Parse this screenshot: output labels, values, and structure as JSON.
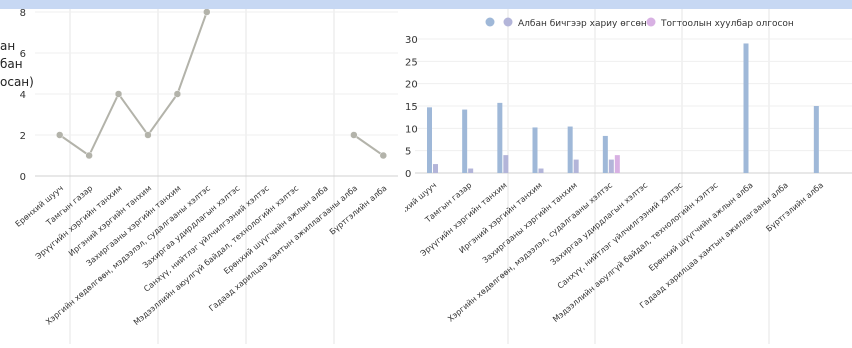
{
  "left_panel": {
    "legend_fragments": [
      "ан",
      "бан",
      "осан)"
    ]
  },
  "chart_data": [
    {
      "type": "line",
      "title": "",
      "xlabel": "",
      "ylabel": "",
      "ylim": [
        0,
        8
      ],
      "yticks": [
        "0",
        "2",
        "4",
        "6",
        "8"
      ],
      "grid": true,
      "categories": [
        "Ерөнхий шууч",
        "Тамгын газар",
        "Эрүүгийн хэргийн танхим",
        "Иргэний хэргийн танхим",
        "Захиргааны хэргийн танхим",
        "Хэргийн хөдөлгөөн, мэдээлэл, судалгааны хэлтэс",
        "Захиргаа удирдлагын хэлтэс",
        "Санхүү, нийтлэг үйлчилгээний хэлтэс",
        "Мэдээллийн аюулгүй байдал, технологийн хэлтэс",
        "Ерөнхий шүүгчийн ажлын алба",
        "Гадаад харилцаа хамтын ажиллагааны алба",
        "Бүртгэлийн алба"
      ],
      "series": [
        {
          "values": [
            2,
            1,
            4,
            2,
            4,
            8,
            null,
            null,
            null,
            null,
            2,
            1
          ],
          "color": "#b3b3aa"
        }
      ]
    },
    {
      "type": "bar",
      "title": "",
      "xlabel": "",
      "ylabel": "",
      "ylim": [
        0,
        30
      ],
      "yticks": [
        "0",
        "5",
        "10",
        "15",
        "20",
        "25",
        "30"
      ],
      "grid": true,
      "legend_position": "top",
      "categories": [
        "Ерөнхий шууч",
        "Тамгын газар",
        "Эрүүгийн хэргийн танхим",
        "Иргэний хэргийн танхим",
        "Захиргааны хэргийн танхим",
        "Хэргийн хөдөлгөөн, мэдээлэл, судалгааны хэлтэс",
        "Захиргаа удирдлагын хэлтэс",
        "Санхүү, нийтлэг үйлчилгээний хэлтэс",
        "Мэдээллийн аюулгүй байдал, технологийн хэлтэс",
        "Ерөнхий шүүгчийн ажлын алба",
        "Гадаад харилцаа хамтын ажиллагааны алба",
        "Бүртгэлийн алба"
      ],
      "series": [
        {
          "name": "",
          "color": "#9fb8d8",
          "values": [
            14.7,
            14.2,
            15.7,
            10.2,
            10.4,
            8.3,
            0,
            0,
            0,
            29,
            0,
            15
          ]
        },
        {
          "name": "Албан бичгээр хариу өгсөн",
          "color": "#b3b5d9",
          "values": [
            2,
            1,
            4,
            1,
            3,
            3,
            0,
            0,
            0,
            0,
            0,
            0
          ]
        },
        {
          "name": "Тогтоолын хуулбар олгосон",
          "color": "#d8b1e3",
          "values": [
            0,
            0,
            0,
            0,
            0,
            4,
            0,
            0,
            0,
            0,
            0,
            0
          ]
        }
      ]
    }
  ]
}
